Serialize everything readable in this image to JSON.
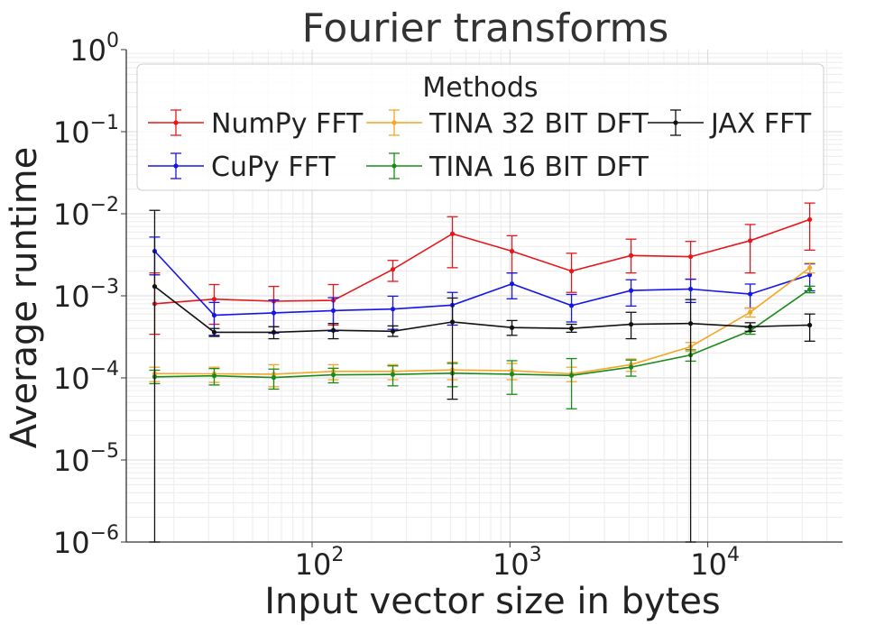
{
  "chart_data": {
    "type": "line",
    "title": "Fourier transforms",
    "xlabel": "Input vector size in bytes",
    "ylabel": "Average runtime",
    "x_scale": "log",
    "y_scale": "log",
    "xlim": [
      11.5,
      48000
    ],
    "ylim": [
      1e-06,
      1
    ],
    "x_ticks": [
      {
        "value": 100,
        "base": "10",
        "exp": "2"
      },
      {
        "value": 1000,
        "base": "10",
        "exp": "3"
      },
      {
        "value": 10000,
        "base": "10",
        "exp": "4"
      }
    ],
    "y_ticks": [
      {
        "value": 1e-06,
        "base": "10",
        "exp": "−6"
      },
      {
        "value": 1e-05,
        "base": "10",
        "exp": "−5"
      },
      {
        "value": 0.0001,
        "base": "10",
        "exp": "−4"
      },
      {
        "value": 0.001,
        "base": "10",
        "exp": "−3"
      },
      {
        "value": 0.01,
        "base": "10",
        "exp": "−2"
      },
      {
        "value": 0.1,
        "base": "10",
        "exp": "−1"
      },
      {
        "value": 1,
        "base": "10",
        "exp": "0"
      }
    ],
    "grid": true,
    "legend": {
      "title": "Methods",
      "placement": "top"
    },
    "x": [
      16,
      32,
      64,
      128,
      256,
      512,
      1024,
      2048,
      4096,
      8192,
      16384,
      32768
    ],
    "series": [
      {
        "name": "NumPy FFT",
        "color": "#e8161b",
        "values": [
          0.0008,
          0.00091,
          0.00086,
          0.00088,
          0.0021,
          0.0057,
          0.0035,
          0.002,
          0.0031,
          0.003,
          0.0047,
          0.0085
        ],
        "err_low": [
          0.00034,
          0.00045,
          0.00042,
          0.00044,
          0.0015,
          0.0022,
          0.0019,
          0.0011,
          0.0019,
          0.0016,
          0.0019,
          0.0036
        ],
        "err_high": [
          0.0019,
          0.00137,
          0.0013,
          0.00137,
          0.0027,
          0.0092,
          0.0054,
          0.0033,
          0.0049,
          0.0046,
          0.0074,
          0.0135
        ]
      },
      {
        "name": "CuPy FFT",
        "color": "#1515e8",
        "values": [
          0.0035,
          0.00058,
          0.00062,
          0.00066,
          0.00069,
          0.00077,
          0.0014,
          0.00076,
          0.00116,
          0.00121,
          0.00105,
          0.0018
        ],
        "err_low": [
          0.0018,
          0.00033,
          0.00035,
          0.00037,
          0.00039,
          0.00044,
          0.00092,
          0.00048,
          0.00075,
          0.00083,
          0.00071,
          0.00115
        ],
        "err_high": [
          0.0052,
          0.00083,
          0.00089,
          0.00095,
          0.00099,
          0.0011,
          0.0019,
          0.00104,
          0.00157,
          0.00159,
          0.00139,
          0.00245
        ]
      },
      {
        "name": "TINA 32 BIT DFT",
        "color": "#f5a623",
        "values": [
          0.000113,
          0.000112,
          0.000111,
          0.00012,
          0.00012,
          0.000125,
          0.000122,
          0.000112,
          0.000145,
          0.00024,
          0.00063,
          0.0022
        ],
        "err_low": [
          9e-05,
          8.8e-05,
          7.8e-05,
          9.5e-05,
          9.5e-05,
          9.5e-05,
          9.5e-05,
          9e-05,
          0.00012,
          0.00021,
          0.00055,
          0.0019
        ],
        "err_high": [
          0.000135,
          0.000135,
          0.000145,
          0.000145,
          0.000145,
          0.000155,
          0.00015,
          0.000135,
          0.00017,
          0.00027,
          0.00071,
          0.0025
        ]
      },
      {
        "name": "TINA 16 BIT DFT",
        "color": "#1a8a1a",
        "values": [
          0.000103,
          0.000106,
          0.000101,
          0.000109,
          0.00011,
          0.000114,
          0.000111,
          0.000107,
          0.000135,
          0.00019,
          0.000375,
          0.0012
        ],
        "err_low": [
          8.5e-05,
          8.2e-05,
          7.3e-05,
          8.7e-05,
          8e-05,
          7.8e-05,
          6.3e-05,
          4.2e-05,
          0.000105,
          0.00016,
          0.00034,
          0.00109
        ],
        "err_high": [
          0.000124,
          0.00013,
          0.000128,
          0.000131,
          0.00014,
          0.00015,
          0.000162,
          0.000172,
          0.000165,
          0.00022,
          0.00041,
          0.00131
        ]
      },
      {
        "name": "JAX FFT",
        "color": "#111111",
        "values": [
          0.0013,
          0.00036,
          0.00036,
          0.00038,
          0.00037,
          0.00048,
          0.00041,
          0.0004,
          0.00045,
          0.00046,
          0.00042,
          0.00044
        ],
        "err_low": [
          1e-06,
          0.00032,
          0.0003,
          0.0003,
          0.00032,
          5.5e-05,
          0.00033,
          0.00036,
          0.0003,
          1e-06,
          0.00037,
          0.00028
        ],
        "err_high": [
          0.011,
          0.0004,
          0.00042,
          0.00046,
          0.00043,
          0.00094,
          0.0005,
          0.00045,
          0.00063,
          0.0009,
          0.00047,
          0.0006
        ]
      }
    ]
  }
}
